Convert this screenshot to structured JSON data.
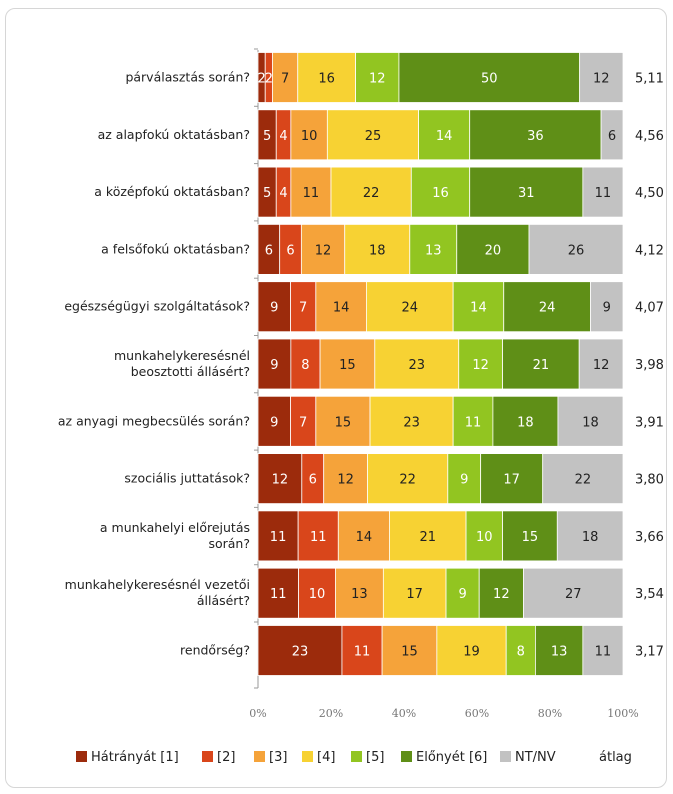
{
  "chart_data": {
    "type": "bar",
    "orientation": "horizontal",
    "stacked": "percent",
    "categories": [
      [
        "párválasztás során?"
      ],
      [
        "az alapfokú oktatásban?"
      ],
      [
        "a középfokú oktatásban?"
      ],
      [
        "a felsőfokú oktatásban?"
      ],
      [
        "egészségügyi szolgáltatások?"
      ],
      [
        "munkahelykeresésnél",
        "beosztotti állásért?"
      ],
      [
        "az anyagi megbecsülés során?"
      ],
      [
        "szociális juttatások?"
      ],
      [
        "a munkahelyi előrejutás",
        "során?"
      ],
      [
        "munkahelykeresésnél vezetői",
        "állásért?"
      ],
      [
        "rendőrség?"
      ]
    ],
    "series": [
      {
        "name": "Hátrányát [1]",
        "color": "#9c2b0c",
        "values": [
          2,
          5,
          5,
          6,
          9,
          9,
          9,
          12,
          11,
          11,
          23
        ]
      },
      {
        "name": "[2]",
        "color": "#d9461b",
        "values": [
          2,
          4,
          4,
          6,
          7,
          8,
          7,
          6,
          11,
          10,
          11
        ]
      },
      {
        "name": "[3]",
        "color": "#f5a33a",
        "values": [
          7,
          10,
          11,
          12,
          14,
          15,
          15,
          12,
          14,
          13,
          15
        ]
      },
      {
        "name": "[4]",
        "color": "#f7d233",
        "values": [
          16,
          25,
          22,
          18,
          24,
          23,
          23,
          22,
          21,
          17,
          19
        ]
      },
      {
        "name": "[5]",
        "color": "#92c521",
        "values": [
          12,
          14,
          16,
          13,
          14,
          12,
          11,
          9,
          10,
          9,
          8
        ]
      },
      {
        "name": "Előnyét [6]",
        "color": "#5f8f17",
        "values": [
          50,
          36,
          31,
          20,
          24,
          21,
          18,
          17,
          15,
          12,
          13
        ]
      },
      {
        "name": "NT/NV",
        "color": "#c2c2c2",
        "values": [
          12,
          6,
          11,
          26,
          9,
          12,
          18,
          22,
          18,
          27,
          11
        ]
      }
    ],
    "average": {
      "name": "átlag",
      "values": [
        "5,11",
        "4,56",
        "4,50",
        "4,12",
        "4,07",
        "3,98",
        "3,91",
        "3,80",
        "3,66",
        "3,54",
        "3,17"
      ]
    },
    "xticks": [
      "0%",
      "20%",
      "40%",
      "60%",
      "80%",
      "100%"
    ],
    "xlim": [
      0,
      100
    ],
    "grid": false,
    "legend": "bottom"
  }
}
